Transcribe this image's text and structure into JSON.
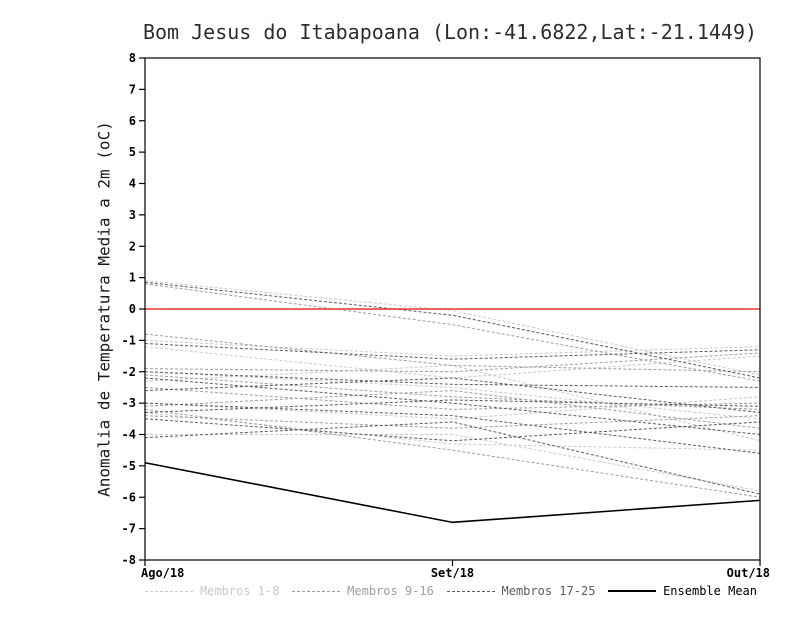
{
  "chart_data": {
    "type": "line",
    "title": "Bom Jesus do Itabapoana (Lon:-41.6822,Lat:-21.1449)",
    "xlabel": "",
    "ylabel": "Anomalia de Temperatura Media a 2m (oC)",
    "x_ticklabels": [
      "Ago/18",
      "Set/18",
      "Out/18"
    ],
    "ylim": [
      -8,
      8
    ],
    "y_tick_step": 1,
    "grid": false,
    "zero_line": {
      "y": 0,
      "color": "#e8372d"
    },
    "groups": [
      {
        "name": "Membros 1-8",
        "color": "#c9c9c9",
        "style": "dashed",
        "members": [
          [
            0.9,
            -0.05,
            -2.1
          ],
          [
            -1.0,
            -1.5,
            -1.2
          ],
          [
            -1.2,
            -2.2,
            -1.5
          ],
          [
            -2.0,
            -2.5,
            -3.5
          ],
          [
            -2.3,
            -1.8,
            -4.2
          ],
          [
            -3.0,
            -3.5,
            -2.8
          ],
          [
            -3.3,
            -4.3,
            -4.5
          ],
          [
            -4.0,
            -4.0,
            -5.8
          ]
        ]
      },
      {
        "name": "Membros 9-16",
        "color": "#9e9e9e",
        "style": "dashed",
        "members": [
          [
            0.8,
            -0.5,
            -2.3
          ],
          [
            -0.8,
            -1.8,
            -2.0
          ],
          [
            -1.9,
            -2.0,
            -1.4
          ],
          [
            -2.1,
            -2.8,
            -3.2
          ],
          [
            -2.5,
            -3.2,
            -3.0
          ],
          [
            -3.1,
            -2.6,
            -3.8
          ],
          [
            -3.4,
            -3.8,
            -3.4
          ],
          [
            -3.2,
            -4.5,
            -6.0
          ]
        ]
      },
      {
        "name": "Membros 17-25",
        "color": "#5c5c5c",
        "style": "dashed",
        "members": [
          [
            0.85,
            -0.2,
            -2.2
          ],
          [
            -1.1,
            -1.6,
            -1.3
          ],
          [
            -2.0,
            -2.4,
            -2.5
          ],
          [
            -2.2,
            -3.0,
            -4.0
          ],
          [
            -2.6,
            -2.2,
            -3.3
          ],
          [
            -3.0,
            -3.4,
            -4.6
          ],
          [
            -3.3,
            -2.9,
            -3.1
          ],
          [
            -3.5,
            -4.2,
            -3.6
          ],
          [
            -4.1,
            -3.6,
            -5.9
          ]
        ]
      }
    ],
    "mean": {
      "name": "Ensemble Mean",
      "color": "#000000",
      "style": "solid",
      "values": [
        -4.9,
        -6.8,
        -6.1
      ]
    },
    "legend": [
      {
        "label": "Membros 1-8",
        "color": "#c9c9c9",
        "style": "dashed"
      },
      {
        "label": "Membros 9-16",
        "color": "#9e9e9e",
        "style": "dashed"
      },
      {
        "label": "Membros 17-25",
        "color": "#5c5c5c",
        "style": "dashed"
      },
      {
        "label": "Ensemble Mean",
        "color": "#000000",
        "style": "solid"
      }
    ],
    "legend_position": "bottom"
  }
}
